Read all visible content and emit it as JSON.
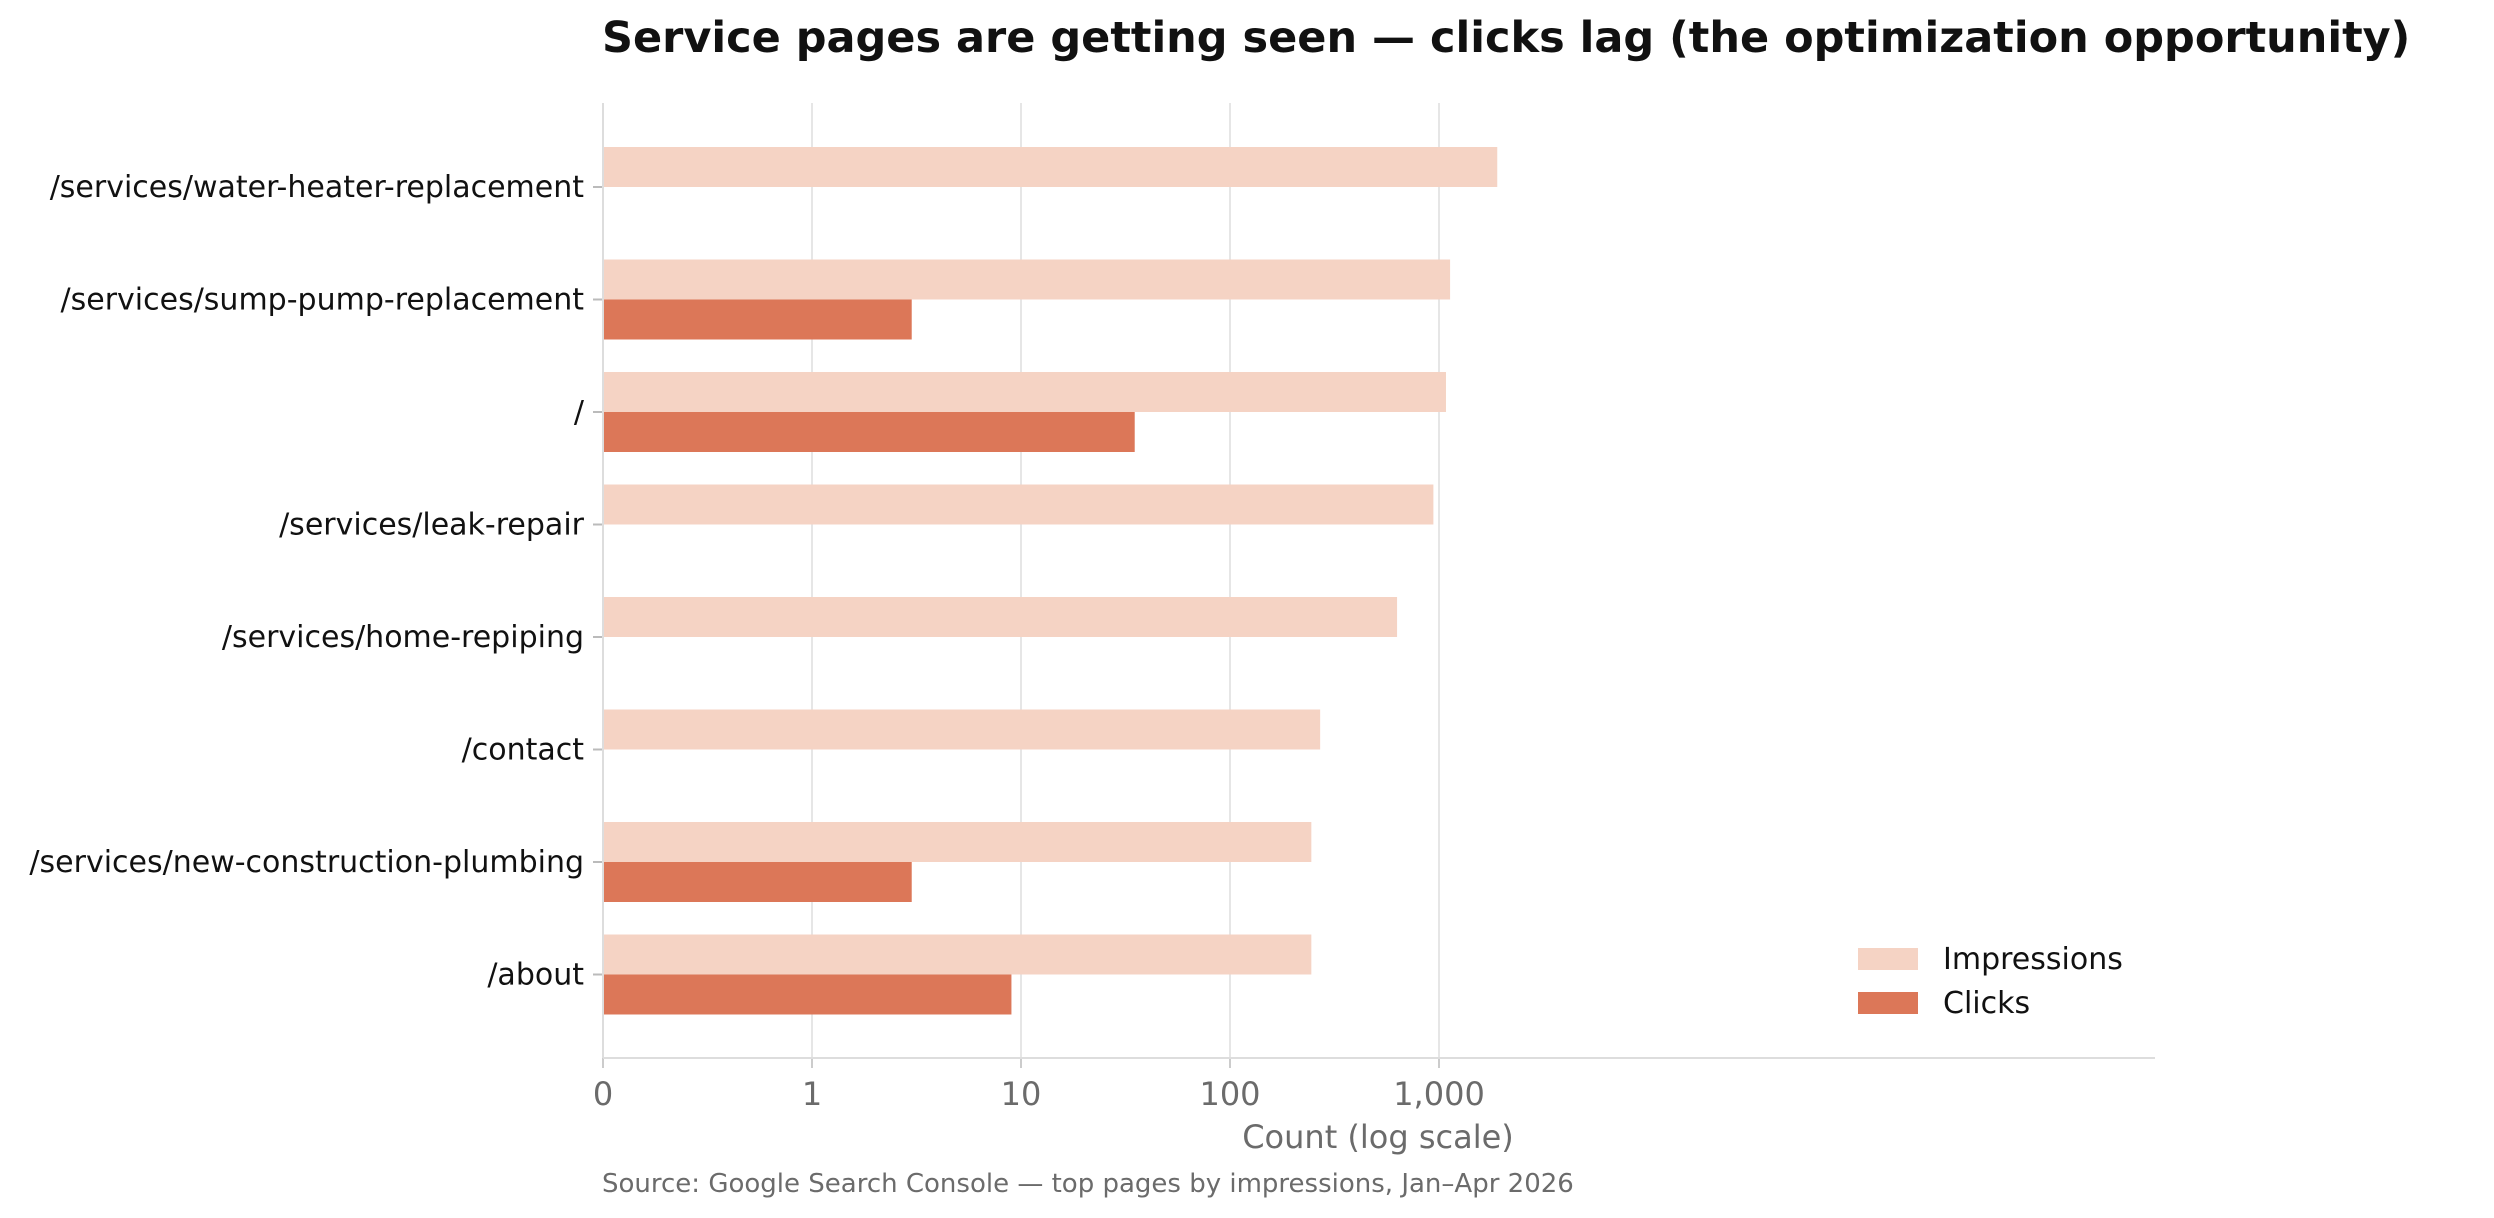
{
  "chart_data": {
    "type": "bar",
    "orientation": "horizontal",
    "title": "Service pages are getting seen — clicks lag (the optimization opportunity)",
    "xlabel": "Count (log scale)",
    "ylabel": "",
    "source": "Source: Google Search Console — top pages by impressions, Jan–Apr 2026",
    "x_scale": "symlog",
    "xlim": [
      0,
      2000
    ],
    "x_ticks": [
      0,
      1,
      10,
      100,
      1000
    ],
    "x_tick_labels": [
      "0",
      "1",
      "10",
      "100",
      "1,000"
    ],
    "grid": "vertical",
    "legend_position": "lower-right",
    "categories": [
      "/services/water-heater-replacement",
      "/services/sump-pump-replacement",
      "/",
      "/services/leak-repair",
      "/services/home-repiping",
      "/contact",
      "/services/new-construction-plumbing",
      "/about"
    ],
    "series": [
      {
        "name": "Impressions",
        "color": "#f5d3c4",
        "values": [
          1900,
          1130,
          1080,
          940,
          630,
          270,
          245,
          245
        ]
      },
      {
        "name": "Clicks",
        "color": "#dc7758",
        "values": [
          0,
          3,
          35,
          0,
          0,
          0,
          3,
          9
        ]
      }
    ]
  }
}
